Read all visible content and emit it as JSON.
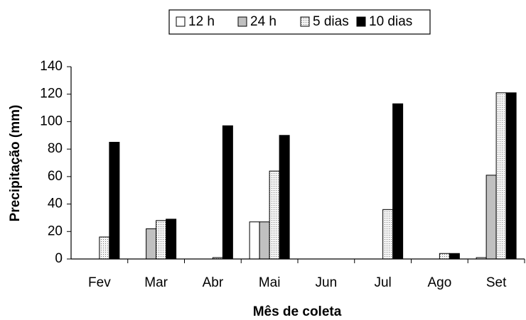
{
  "chart_data": {
    "type": "bar",
    "x_label": "Mês de coleta",
    "y_label": "Precipitação (mm)",
    "categories": [
      "Fev",
      "Mar",
      "Abr",
      "Mai",
      "Jun",
      "Jul",
      "Ago",
      "Set"
    ],
    "series": [
      {
        "name": "12 h",
        "color": "#ffffff",
        "values": [
          0,
          0,
          0,
          27,
          0,
          0,
          0,
          1
        ]
      },
      {
        "name": "24 h",
        "color": "#c0c0c0",
        "values": [
          0,
          22,
          0,
          27,
          0,
          0,
          0,
          61
        ]
      },
      {
        "name": "5 dias",
        "color": "#f4f4f4",
        "pattern": "dotted",
        "values": [
          16,
          28,
          1,
          64,
          0,
          36,
          4,
          121
        ]
      },
      {
        "name": "10 dias",
        "color": "#000000",
        "values": [
          85,
          29,
          97,
          90,
          0,
          113,
          4,
          121
        ]
      }
    ],
    "ylim": [
      0,
      140
    ],
    "yticks": [
      0,
      20,
      40,
      60,
      80,
      100,
      120,
      140
    ],
    "grid": false,
    "legend": "top"
  }
}
